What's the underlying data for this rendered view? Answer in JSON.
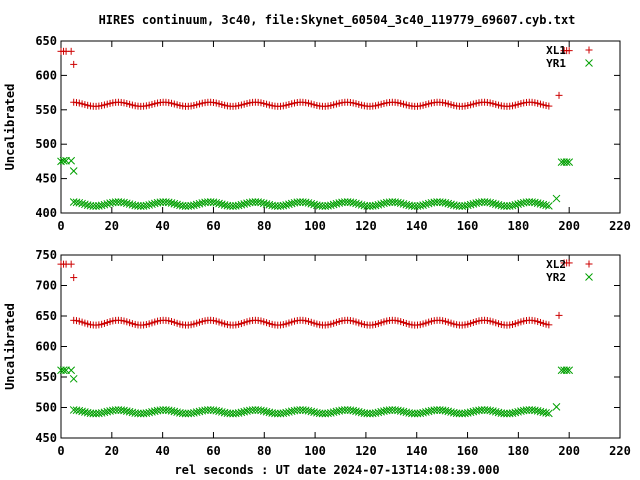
{
  "title": "HIRES continuum, 3c40, file:Skynet_60504_3c40_119779_69607.cyb.txt",
  "xlabel": "rel seconds : UT date 2024-07-13T14:08:39.000",
  "chart_data": [
    {
      "type": "scatter",
      "ylabel": "Uncalibrated",
      "xlim": [
        0,
        220
      ],
      "ylim": [
        400,
        650
      ],
      "xticks": [
        0,
        20,
        40,
        60,
        80,
        100,
        120,
        140,
        160,
        180,
        200,
        220
      ],
      "yticks": [
        400,
        450,
        500,
        550,
        600,
        650
      ],
      "legend_position": "top-right",
      "series": [
        {
          "name": "XL1",
          "marker": "plus",
          "color": "#cc0000",
          "points": [
            [
              0,
              635
            ],
            [
              1,
              635
            ],
            [
              2,
              635
            ],
            [
              4,
              635
            ],
            [
              5,
              616
            ],
            [
              196,
              571
            ],
            [
              198,
              636
            ],
            [
              199,
              636
            ],
            [
              200,
              636
            ]
          ],
          "scan": {
            "x_start": 5,
            "x_end": 193,
            "step": 1.1,
            "base": 558,
            "amplitude": 3,
            "period": 18
          },
          "scan_points": []
        },
        {
          "name": "YR1",
          "marker": "cross",
          "color": "#00a000",
          "points": [
            [
              0,
              475
            ],
            [
              1,
              476
            ],
            [
              2,
              476
            ],
            [
              4,
              476
            ],
            [
              5,
              461
            ],
            [
              195,
              421
            ],
            [
              197,
              474
            ],
            [
              198,
              474
            ],
            [
              199,
              474
            ],
            [
              200,
              474
            ]
          ],
          "scan": {
            "x_start": 5,
            "x_end": 193,
            "step": 1.1,
            "base": 413,
            "amplitude": 3,
            "period": 18
          },
          "scan_points": []
        }
      ]
    },
    {
      "type": "scatter",
      "ylabel": "Uncalibrated",
      "xlim": [
        0,
        220
      ],
      "ylim": [
        450,
        750
      ],
      "xticks": [
        0,
        20,
        40,
        60,
        80,
        100,
        120,
        140,
        160,
        180,
        200,
        220
      ],
      "yticks": [
        450,
        500,
        550,
        600,
        650,
        700,
        750
      ],
      "legend_position": "top-right",
      "series": [
        {
          "name": "XL2",
          "marker": "plus",
          "color": "#cc0000",
          "points": [
            [
              0,
              735
            ],
            [
              1,
              735
            ],
            [
              2,
              735
            ],
            [
              4,
              735
            ],
            [
              5,
              713
            ],
            [
              196,
              651
            ],
            [
              198,
              737
            ],
            [
              199,
              737
            ],
            [
              200,
              737
            ]
          ],
          "scan": {
            "x_start": 5,
            "x_end": 193,
            "step": 1.1,
            "base": 639,
            "amplitude": 4,
            "period": 18
          },
          "scan_points": []
        },
        {
          "name": "YR2",
          "marker": "cross",
          "color": "#00a000",
          "points": [
            [
              0,
              561
            ],
            [
              1,
              561
            ],
            [
              2,
              561
            ],
            [
              4,
              561
            ],
            [
              5,
              547
            ],
            [
              195,
              501
            ],
            [
              197,
              561
            ],
            [
              198,
              561
            ],
            [
              199,
              561
            ],
            [
              200,
              561
            ]
          ],
          "scan": {
            "x_start": 5,
            "x_end": 193,
            "step": 1.1,
            "base": 493,
            "amplitude": 3,
            "period": 18
          },
          "scan_points": []
        }
      ]
    }
  ]
}
